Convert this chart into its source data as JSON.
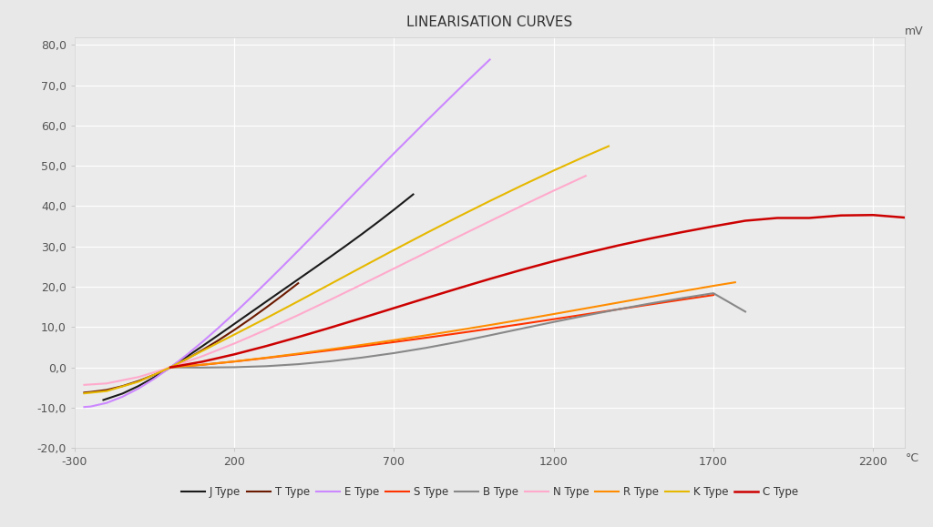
{
  "title": "LINEARISATION CURVES",
  "xlabel": "°C",
  "ylabel": "mV",
  "xlim": [
    -300,
    2300
  ],
  "ylim": [
    -20,
    82
  ],
  "xticks": [
    -300,
    200,
    700,
    1200,
    1700,
    2200
  ],
  "yticks": [
    -20,
    -10,
    0,
    10,
    20,
    30,
    40,
    50,
    60,
    70,
    80
  ],
  "background_color": "#e8e8e8",
  "plot_bg_color": "#ebebeb",
  "grid_color": "#ffffff",
  "series": [
    {
      "name": "J Type",
      "color": "#1a1a1a",
      "linewidth": 1.5,
      "temps": [
        -210,
        -150,
        -100,
        -50,
        0,
        50,
        100,
        150,
        200,
        250,
        300,
        350,
        400,
        450,
        500,
        550,
        600,
        650,
        700,
        750,
        760
      ],
      "mv": [
        -8.095,
        -6.5,
        -4.633,
        -2.431,
        0.0,
        2.585,
        5.269,
        8.01,
        10.779,
        13.555,
        16.327,
        19.09,
        21.848,
        24.61,
        27.393,
        30.213,
        33.102,
        36.071,
        39.132,
        42.283,
        42.922
      ]
    },
    {
      "name": "T Type",
      "color": "#6B1A00",
      "linewidth": 1.5,
      "temps": [
        -270,
        -250,
        -200,
        -150,
        -100,
        -50,
        0,
        50,
        100,
        150,
        200,
        250,
        300,
        350,
        400
      ],
      "mv": [
        -6.258,
        -6.105,
        -5.603,
        -4.648,
        -3.379,
        -1.819,
        0.0,
        2.036,
        4.279,
        6.704,
        9.288,
        12.011,
        14.862,
        17.819,
        20.872
      ]
    },
    {
      "name": "E Type",
      "color": "#cc88ff",
      "linewidth": 1.5,
      "temps": [
        -270,
        -250,
        -200,
        -150,
        -100,
        -50,
        0,
        50,
        100,
        150,
        200,
        250,
        300,
        350,
        400,
        450,
        500,
        550,
        600,
        650,
        700,
        750,
        800,
        850,
        900,
        950,
        1000
      ],
      "mv": [
        -9.835,
        -9.719,
        -8.825,
        -7.279,
        -5.237,
        -2.787,
        0.0,
        3.048,
        6.319,
        9.789,
        13.421,
        17.181,
        21.036,
        24.964,
        28.946,
        32.96,
        37.005,
        41.053,
        45.093,
        49.109,
        53.112,
        57.06,
        61.017,
        64.909,
        68.787,
        72.593,
        76.373
      ]
    },
    {
      "name": "S Type",
      "color": "#ff3300",
      "linewidth": 1.5,
      "temps": [
        0,
        100,
        200,
        300,
        400,
        500,
        600,
        700,
        800,
        900,
        1000,
        1100,
        1200,
        1300,
        1400,
        1500,
        1600,
        1700
      ],
      "mv": [
        0.0,
        0.646,
        1.441,
        2.323,
        3.259,
        4.233,
        5.239,
        6.275,
        7.345,
        8.449,
        9.587,
        10.757,
        11.951,
        13.159,
        14.373,
        15.582,
        16.777,
        17.947
      ]
    },
    {
      "name": "B Type",
      "color": "#888888",
      "linewidth": 1.5,
      "temps": [
        0,
        100,
        200,
        300,
        400,
        500,
        600,
        700,
        800,
        900,
        1000,
        1100,
        1200,
        1300,
        1400,
        1500,
        1600,
        1700,
        1800
      ],
      "mv": [
        0.0,
        -0.053,
        0.033,
        0.291,
        0.787,
        1.505,
        2.431,
        3.54,
        4.834,
        6.31,
        7.949,
        9.616,
        11.263,
        12.856,
        14.373,
        15.817,
        17.151,
        18.395,
        13.82
      ]
    },
    {
      "name": "N Type",
      "color": "#ffaacc",
      "linewidth": 1.5,
      "temps": [
        -270,
        -200,
        -100,
        0,
        100,
        200,
        300,
        400,
        500,
        600,
        700,
        800,
        900,
        1000,
        1100,
        1200,
        1300
      ],
      "mv": [
        -4.345,
        -3.99,
        -2.407,
        0.0,
        2.774,
        5.913,
        9.341,
        12.974,
        16.748,
        20.613,
        24.527,
        28.455,
        32.371,
        36.256,
        40.087,
        43.846,
        47.513
      ]
    },
    {
      "name": "R Type",
      "color": "#ff8c00",
      "linewidth": 1.5,
      "temps": [
        0,
        100,
        200,
        300,
        400,
        500,
        600,
        700,
        800,
        900,
        1000,
        1100,
        1200,
        1300,
        1400,
        1500,
        1600,
        1700,
        1768
      ],
      "mv": [
        0.0,
        0.647,
        1.469,
        2.401,
        3.408,
        4.471,
        5.583,
        6.743,
        7.95,
        9.203,
        10.503,
        11.846,
        13.228,
        14.629,
        16.04,
        17.451,
        18.849,
        20.222,
        21.101
      ]
    },
    {
      "name": "K Type",
      "color": "#e6b800",
      "linewidth": 1.5,
      "temps": [
        -270,
        -200,
        -100,
        0,
        100,
        200,
        300,
        400,
        500,
        600,
        700,
        800,
        900,
        1000,
        1100,
        1200,
        1300,
        1372
      ],
      "mv": [
        -6.458,
        -5.891,
        -3.554,
        0.0,
        4.096,
        8.138,
        12.209,
        16.397,
        20.644,
        24.905,
        29.129,
        33.275,
        37.326,
        41.276,
        45.119,
        48.838,
        52.41,
        54.886
      ]
    },
    {
      "name": "C Type",
      "color": "#cc0000",
      "linewidth": 1.8,
      "temps": [
        0,
        100,
        200,
        300,
        400,
        500,
        600,
        700,
        800,
        900,
        1000,
        1100,
        1200,
        1300,
        1400,
        1500,
        1600,
        1700,
        1800,
        1900,
        2000,
        2100,
        2200,
        2315
      ],
      "mv": [
        0.0,
        1.412,
        3.226,
        5.285,
        7.509,
        9.843,
        12.257,
        14.713,
        17.166,
        19.583,
        21.942,
        24.205,
        26.345,
        28.348,
        30.21,
        31.93,
        33.521,
        34.999,
        36.382,
        37.066,
        37.066,
        37.696,
        37.8,
        37.066
      ]
    }
  ],
  "legend_items": [
    {
      "name": "J Type",
      "color": "#1a1a1a"
    },
    {
      "name": "T Type",
      "color": "#6B1A00"
    },
    {
      "name": "E Type",
      "color": "#cc88ff"
    },
    {
      "name": "S Type",
      "color": "#ff3300"
    },
    {
      "name": "B Type",
      "color": "#888888"
    },
    {
      "name": "N Type",
      "color": "#ffaacc"
    },
    {
      "name": "R Type",
      "color": "#ff8c00"
    },
    {
      "name": "K Type",
      "color": "#e6b800"
    },
    {
      "name": "C Type",
      "color": "#cc0000"
    }
  ]
}
